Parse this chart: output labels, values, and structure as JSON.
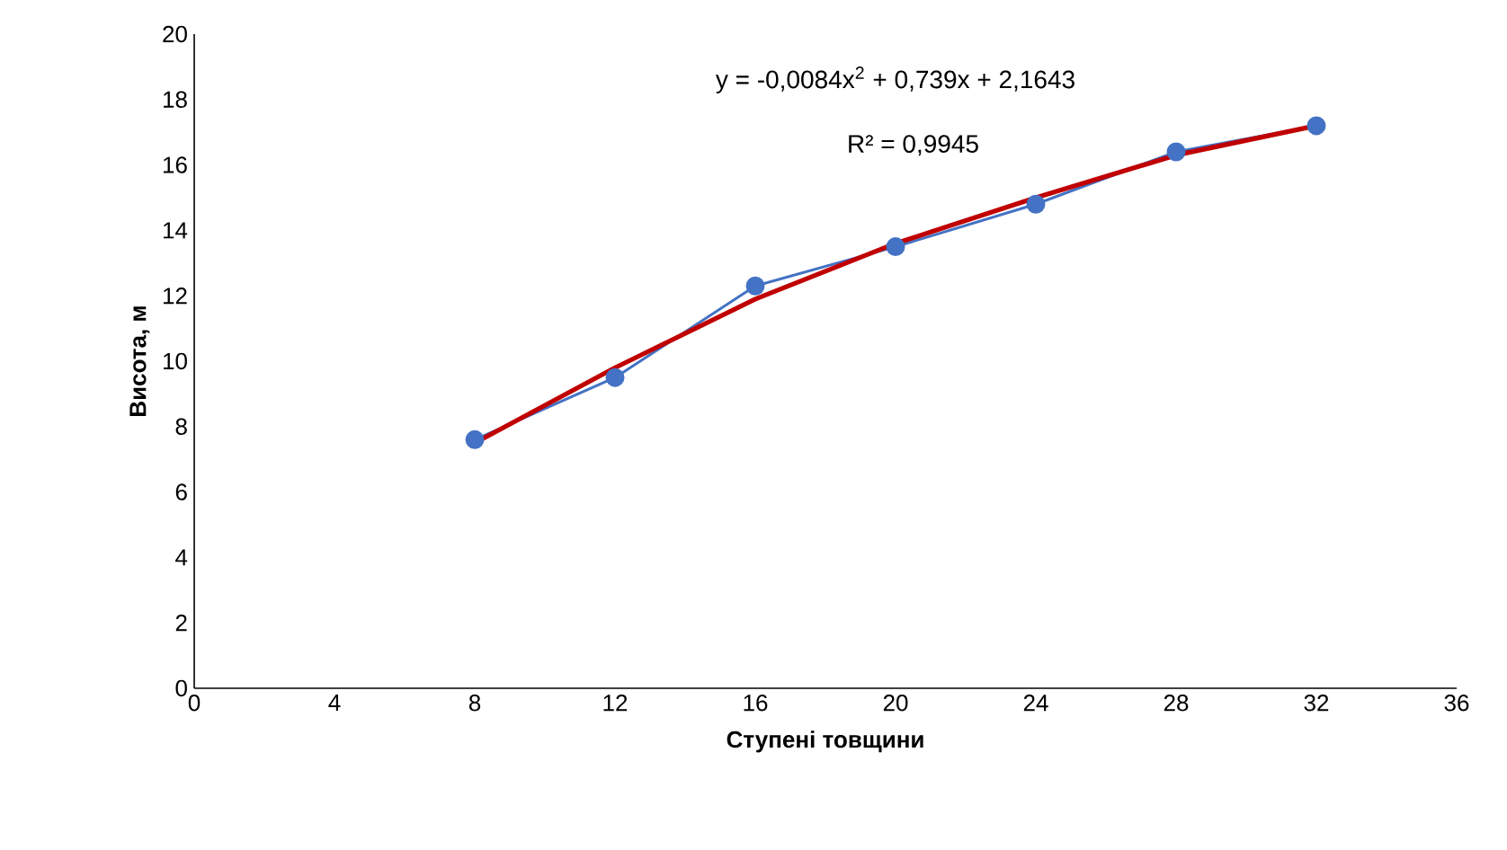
{
  "chart_data": {
    "type": "line",
    "xlabel": "Ступені товщини",
    "ylabel": "Висота, м",
    "xlim": [
      0,
      36
    ],
    "xticks": [
      0,
      4,
      8,
      12,
      16,
      20,
      24,
      28,
      32,
      36
    ],
    "ylim": [
      0,
      20
    ],
    "yticks": [
      0,
      2,
      4,
      6,
      8,
      10,
      12,
      14,
      16,
      18,
      20
    ],
    "series": [
      {
        "color": "#4472c4",
        "marker": "circle",
        "x": [
          8,
          12,
          16,
          20,
          24,
          28,
          32
        ],
        "values": [
          7.6,
          9.5,
          12.3,
          13.5,
          14.8,
          16.4,
          17.2
        ]
      },
      {
        "color": "#c00000",
        "marker": "none",
        "x": [
          8,
          12,
          16,
          20,
          24,
          28,
          32
        ],
        "values": [
          7.5,
          9.8,
          11.9,
          13.6,
          15.0,
          16.3,
          17.2
        ]
      }
    ],
    "annotations": [
      "y = -0,0084x$^{2}$ + 0,739x + 2,1643",
      "R² = 0,9945"
    ]
  }
}
